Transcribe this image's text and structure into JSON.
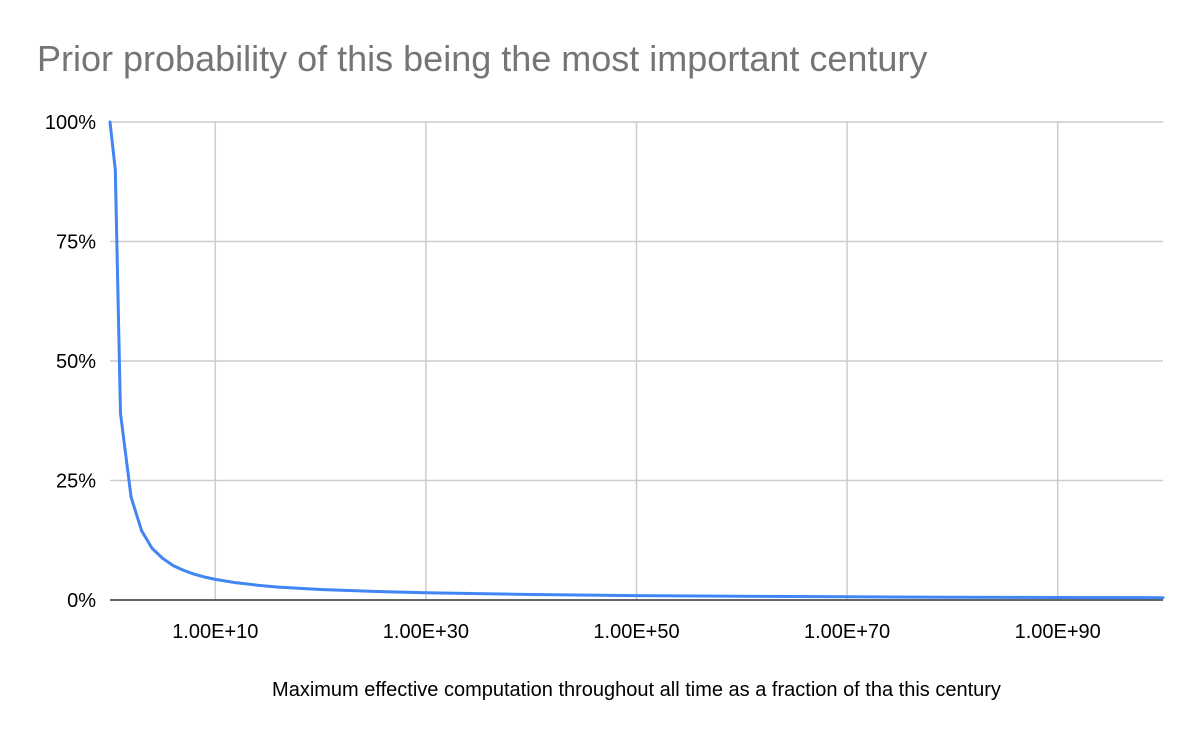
{
  "chart_data": {
    "type": "line",
    "title": "Prior probability of this being the most important century",
    "xlabel": "Maximum effective computation throughout all time as a fraction of tha this century",
    "ylabel": "",
    "x_scale": "log10",
    "xlim_exponent": [
      0,
      100
    ],
    "ylim": [
      0,
      1
    ],
    "y_ticks": [
      {
        "value": 0,
        "label": "0%"
      },
      {
        "value": 0.25,
        "label": "25%"
      },
      {
        "value": 0.5,
        "label": "50%"
      },
      {
        "value": 0.75,
        "label": "75%"
      },
      {
        "value": 1,
        "label": "100%"
      }
    ],
    "x_ticks": [
      {
        "exponent": 10,
        "label": "1.00E+10"
      },
      {
        "exponent": 30,
        "label": "1.00E+30"
      },
      {
        "exponent": 50,
        "label": "1.00E+50"
      },
      {
        "exponent": 70,
        "label": "1.00E+70"
      },
      {
        "exponent": 90,
        "label": "1.00E+90"
      }
    ],
    "grid": true,
    "legend": "none",
    "series": [
      {
        "color": "#4285f4",
        "x_exponent": [
          0,
          0.5,
          1,
          2,
          3,
          4,
          5,
          6,
          7,
          8,
          9,
          10,
          12,
          14,
          16,
          20,
          25,
          30,
          40,
          50,
          60,
          70,
          80,
          90,
          100
        ],
        "values": [
          1.0,
          0.9,
          0.39,
          0.215,
          0.145,
          0.108,
          0.087,
          0.072,
          0.062,
          0.054,
          0.048,
          0.043,
          0.036,
          0.031,
          0.027,
          0.022,
          0.018,
          0.015,
          0.0115,
          0.0093,
          0.0078,
          0.0067,
          0.0059,
          0.0053,
          0.0048
        ]
      }
    ]
  }
}
